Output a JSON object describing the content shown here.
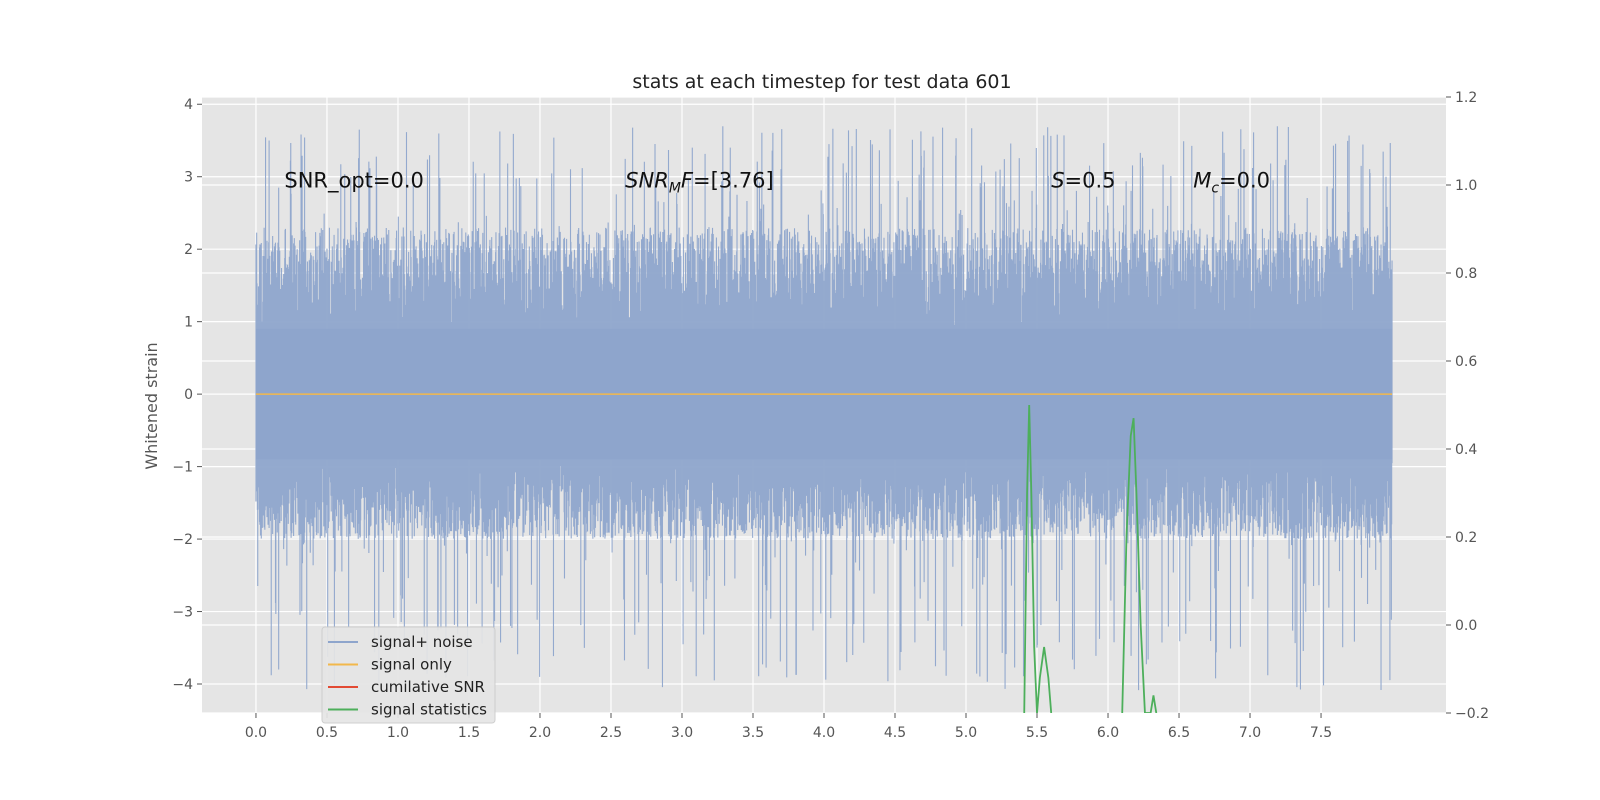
{
  "chart_data": {
    "type": "line",
    "title": "stats at each timestep for test data 601",
    "xlabel": "",
    "ylabel": "Whitened strain",
    "xlim": [
      -0.38,
      8.38
    ],
    "ylim": [
      -4.4,
      4.1
    ],
    "y2lim": [
      -0.2,
      1.2
    ],
    "grid": true,
    "x_ticks": [
      0.0,
      0.5,
      1.0,
      1.5,
      2.0,
      2.5,
      3.0,
      3.5,
      4.0,
      4.5,
      5.0,
      5.5,
      6.0,
      6.5,
      7.0,
      7.5
    ],
    "x_tick_labels": [
      "0.0",
      "0.5",
      "1.0",
      "1.5",
      "2.0",
      "2.5",
      "3.0",
      "3.5",
      "4.0",
      "4.5",
      "5.0",
      "5.5",
      "6.0",
      "6.5",
      "7.0",
      "7.5"
    ],
    "y_ticks": [
      -4,
      -3,
      -2,
      -1,
      0,
      1,
      2,
      3,
      4
    ],
    "y_tick_labels": [
      "−4",
      "−3",
      "−2",
      "−1",
      "0",
      "1",
      "2",
      "3",
      "4"
    ],
    "y2_ticks": [
      -0.2,
      0.0,
      0.2,
      0.4,
      0.6,
      0.8,
      1.0,
      1.2
    ],
    "y2_tick_labels": [
      "−0.2",
      "0.0",
      "0.2",
      "0.4",
      "0.6",
      "0.8",
      "1.0",
      "1.2"
    ],
    "noise_band": {
      "t_start": 0.0,
      "t_end": 8.0,
      "typical_range": [
        -2.0,
        2.3
      ],
      "extreme_range": [
        -4.1,
        3.7
      ]
    },
    "series": [
      {
        "name": "signal+ noise",
        "color": "#8ea5cc",
        "axis": "left",
        "description_values": "dense noise between about -2 and 2.3 with spikes to about 3.7 and -4.1",
        "x": [
          0.0,
          8.0
        ],
        "y_range": [
          -4.1,
          3.7
        ]
      },
      {
        "name": "signal only",
        "color": "#f2b84b",
        "axis": "left",
        "x": [
          0.0,
          8.0
        ],
        "y": [
          0.0,
          0.0
        ]
      },
      {
        "name": "cumilative SNR",
        "color": "#e24a33",
        "axis": "right",
        "x": [],
        "y": []
      },
      {
        "name": "signal statistics",
        "color": "#4daf5b",
        "axis": "right",
        "x": [
          5.41,
          5.43,
          5.445,
          5.46,
          5.48,
          5.5,
          5.52,
          5.55,
          5.58,
          5.6,
          6.1,
          6.13,
          6.16,
          6.18,
          6.2,
          6.23,
          6.26,
          6.28,
          6.3,
          6.32,
          6.34
        ],
        "y": [
          -0.2,
          0.3,
          0.5,
          0.3,
          -0.05,
          -0.2,
          -0.12,
          -0.05,
          -0.12,
          -0.2,
          -0.2,
          0.2,
          0.43,
          0.47,
          0.3,
          0.0,
          -0.2,
          -0.2,
          -0.2,
          -0.16,
          -0.2
        ]
      }
    ],
    "legend_placement": "lower-left",
    "annotations": [
      {
        "id": "snr-opt",
        "text": "SNR_opt=0.0",
        "x": 0.2,
        "y": 2.95
      },
      {
        "id": "snr-mf",
        "main": "SNR",
        "sub": "M",
        "rest": "F=[3.76]",
        "x": 2.6,
        "y": 2.95
      },
      {
        "id": "s",
        "main": "S",
        "rest": "=0.5",
        "x": 5.6,
        "y": 2.95
      },
      {
        "id": "mc",
        "main": "M",
        "sub": "c",
        "rest": "=0.0",
        "x": 6.6,
        "y": 2.95
      }
    ]
  }
}
